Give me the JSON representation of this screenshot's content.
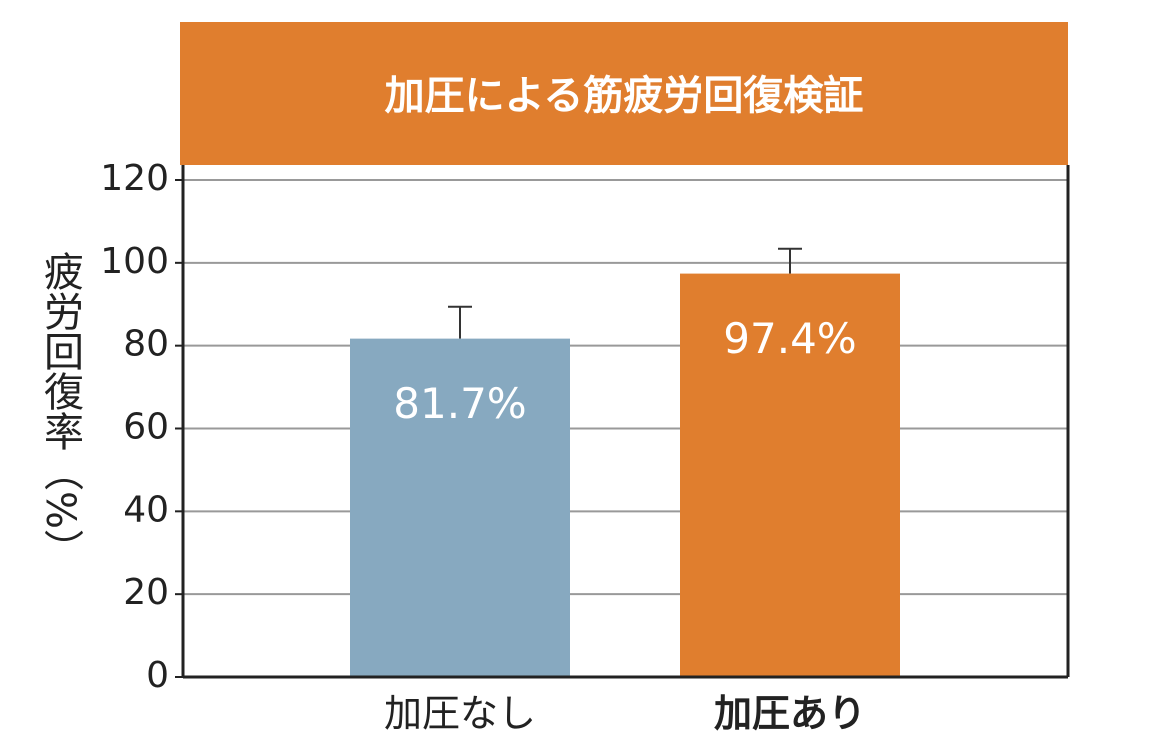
{
  "chart_data": {
    "type": "bar",
    "title": "加圧による筋疲労回復検証",
    "y_label": "疲労回復率（%）",
    "categories": [
      "加圧なし",
      "加圧あり"
    ],
    "values": [
      81.7,
      97.4
    ],
    "value_labels": [
      "81.7%",
      "97.4%"
    ],
    "errors": [
      7.7,
      6
    ],
    "colors": [
      "#87a9c0",
      "#e07e2e"
    ],
    "ylim": [
      0,
      120
    ],
    "yticks": [
      0,
      20,
      40,
      60,
      80,
      100,
      120
    ],
    "grid": true
  }
}
